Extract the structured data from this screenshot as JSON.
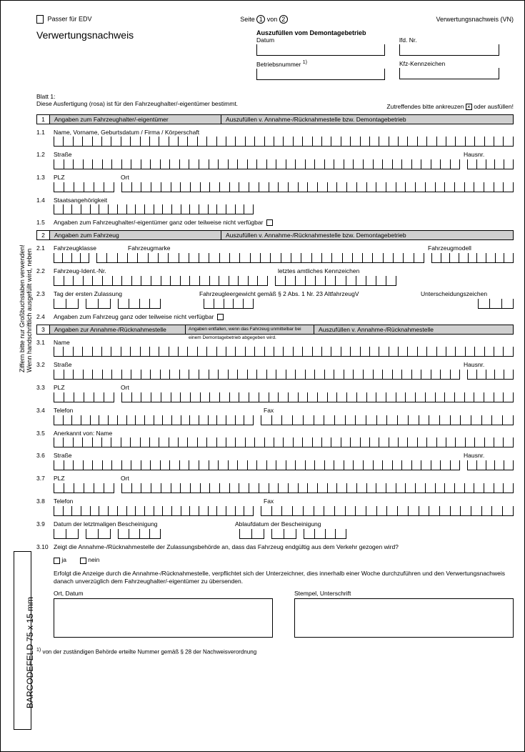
{
  "top": {
    "passer": "Passer für EDV",
    "seite_prefix": "Seite",
    "seite_cur": "1",
    "seite_von": "von",
    "seite_total": "2",
    "doc_type": "Verwertungsnachweis (VN)"
  },
  "title": "Verwertungsnachweis",
  "demontage_header": "Auszufüllen vom Demontagebetrieb",
  "field_datum": "Datum",
  "field_lfdnr": "lfd. Nr.",
  "field_betriebsnr": "Betriebsnummer",
  "field_betriebsnr_fn": "1)",
  "field_kfz": "Kfz-Kennzeichen",
  "blatt": "Blatt 1:",
  "blatt_text": "Diese Ausfertigung (rosa) ist für den Fahrzeughalter/-eigentümer bestimmt.",
  "ankreuz": "Zutreffendes bitte ankreuzen",
  "ankreuz_suffix": "oder ausfüllen!",
  "side1": "Wenn handschriftlich ausgefüllt wird, neben",
  "side2": "Ziffern bitte nur Großbuchstaben verwenden!",
  "barcode": "BARCODEFELD 75 x 15 mm",
  "sec1": {
    "num": "1",
    "title": "Angaben zum Fahrzeughalter/-eigentümer",
    "sub": "Auszufüllen v. Annahme-/Rücknahmestelle bzw. Demontagebetrieb",
    "r11": "Name, Vorname, Geburtsdatum / Firma / Körperschaft",
    "r12": "Straße",
    "r12b": "Hausnr.",
    "r13a": "PLZ",
    "r13b": "Ort",
    "r14": "Staatsangehörigkeit",
    "r15": "Angaben zum Fahrzeughalter/-eigentümer ganz oder teilweise nicht verfügbar"
  },
  "sec2": {
    "num": "2",
    "title": "Angaben zum Fahrzeug",
    "sub": "Auszufüllen v. Annahme-/Rücknahmestelle bzw. Demontagebetrieb",
    "r21a": "Fahrzeugklasse",
    "r21b": "Fahrzeugmarke",
    "r21c": "Fahrzeugmodell",
    "r22a": "Fahrzeug-Ident.-Nr.",
    "r22b": "letztes amtliches Kennzeichen",
    "r23a": "Tag der ersten Zulassung",
    "r23b": "Fahrzeugleergewicht gemäß § 2 Abs. 1 Nr. 23 AltfahrzeugV",
    "r23c": "Unterscheidungszeichen",
    "r24": "Angaben zum Fahrzeug ganz oder teilweise nicht verfügbar"
  },
  "sec3": {
    "num": "3",
    "title": "Angaben zur Annahme-/Rücknahmestelle",
    "sub_small": "Angaben entfallen, wenn das Fahrzeug unmittelbar bei einem Demontagebetrieb abgegeben wird.",
    "sub": "Auszufüllen v. Annahme-/Rücknahmestelle",
    "r31": "Name",
    "r32": "Straße",
    "r32b": "Hausnr.",
    "r33a": "PLZ",
    "r33b": "Ort",
    "r34a": "Telefon",
    "r34b": "Fax",
    "r35": "Anerkannt von: Name",
    "r36": "Straße",
    "r36b": "Hausnr.",
    "r37a": "PLZ",
    "r37b": "Ort",
    "r38a": "Telefon",
    "r38b": "Fax",
    "r39a": "Datum der letztmaligen Bescheinigung",
    "r39b": "Ablaufdatum der Bescheinigung",
    "r310": "Zeigt die Annahme-/Rücknahmestelle der Zulassungsbehörde an, dass das Fahrzeug endgültig aus dem Verkehr gezogen wird?",
    "ja": "ja",
    "nein": "nein",
    "text": "Erfolgt die Anzeige durch die Annahme-/Rücknahmestelle, verpflichtet sich der Unterzeichner, dies innerhalb einer Woche durchzuführen und den Verwertungsnachweis danach unverzüglich dem Fahrzeughalter/-eigentümer zu übersenden.",
    "ort_datum": "Ort, Datum",
    "stempel": "Stempel, Unterschrift"
  },
  "footnote": "von der zuständigen Behörde erteilte Nummer gemäß § 28 der Nachweisverordnung"
}
